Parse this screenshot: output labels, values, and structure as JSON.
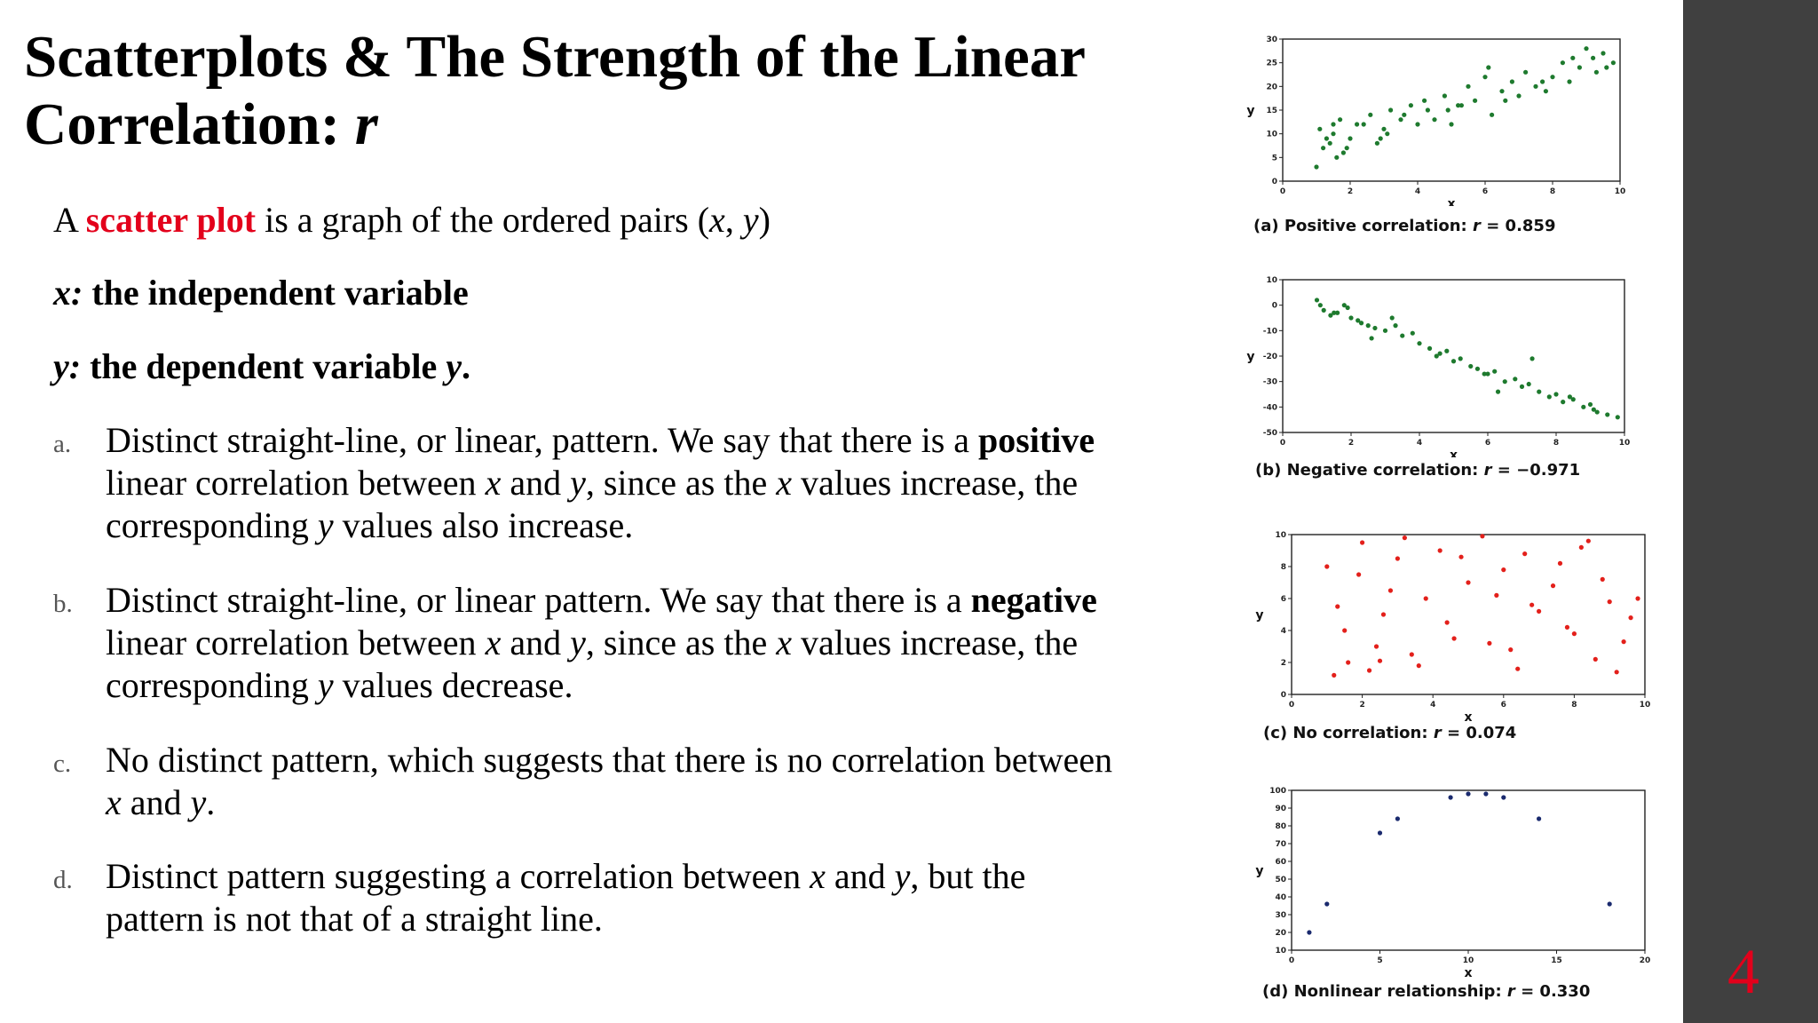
{
  "title": {
    "text": "Scatterplots & The Strength of the Linear Correlation: ",
    "var": "r"
  },
  "intro": {
    "line1": {
      "a": "A ",
      "term": "scatter plot",
      "rest": " is a graph of the ordered pairs (",
      "x": "x",
      "comma": ", ",
      "y": "y",
      "close": ")"
    },
    "line2": {
      "var": "x:",
      "rest": " the independent variable"
    },
    "line3": {
      "var": "y:",
      "rest": " the dependent variable ",
      "y": "y",
      "dot": "."
    }
  },
  "items": [
    {
      "marker": "a.",
      "p1": "Distinct straight-line, or linear, pattern. We say that there is a ",
      "key": "positive",
      "p2": " linear correlation between ",
      "x": "x",
      "and": " and ",
      "y": "y",
      "p3": ", since as the ",
      "x2": "x",
      "p4": " values increase, the corresponding ",
      "y2": "y",
      "p5": " values also increase."
    },
    {
      "marker": "b.",
      "p1": "Distinct straight-line, or linear pattern. We say that there is a ",
      "key": "negative",
      "p2": " linear correlation between ",
      "x": "x",
      "and": " and ",
      "y": "y",
      "p3": ", since as the ",
      "x2": "x",
      "p4": " values increase, the corresponding ",
      "y2": "y",
      "p5": " values decrease."
    },
    {
      "marker": "c.",
      "p1": "No distinct pattern, which suggests that there is no correlation between ",
      "x": "x",
      "and": " and ",
      "y": "y",
      "p2": "."
    },
    {
      "marker": "d.",
      "p1": "Distinct pattern suggesting a correlation between ",
      "x": "x",
      "and": " and ",
      "y": "y",
      "p2": ", but the pattern is not that of a straight line."
    }
  ],
  "page_number": "4",
  "chart_data": [
    {
      "type": "scatter",
      "color": "#1e7a2e",
      "caption": {
        "pre": "(a) Positive correlation: ",
        "r": "r",
        "eq": " = ",
        "val": "0.859"
      },
      "xlabel": "x",
      "ylabel": "y",
      "xlim": [
        0,
        10
      ],
      "ylim": [
        0,
        30
      ],
      "xticks": [
        "0",
        "2",
        "4",
        "6",
        "8",
        "10"
      ],
      "yticks": [
        "0",
        "5",
        "10",
        "15",
        "20",
        "25",
        "30"
      ],
      "x": [
        1.0,
        1.2,
        1.4,
        1.5,
        1.6,
        1.8,
        2.0,
        2.2,
        1.1,
        1.3,
        1.7,
        1.9,
        2.4,
        2.6,
        2.8,
        3.0,
        3.2,
        3.5,
        3.8,
        4.0,
        4.2,
        3.6,
        2.9,
        4.5,
        4.8,
        5.0,
        5.2,
        5.5,
        4.3,
        5.7,
        6.0,
        6.2,
        6.5,
        6.8,
        7.0,
        5.3,
        6.1,
        7.2,
        7.5,
        7.8,
        8.0,
        8.3,
        8.5,
        8.8,
        9.0,
        9.2,
        9.5,
        9.8,
        6.6,
        7.7,
        8.6,
        9.3,
        9.6,
        1.5,
        3.1,
        4.9
      ],
      "y": [
        3,
        7,
        8,
        10,
        5,
        6,
        9,
        12,
        11,
        9,
        13,
        7,
        12,
        14,
        8,
        11,
        15,
        13,
        16,
        12,
        17,
        14,
        9,
        13,
        18,
        12,
        16,
        20,
        15,
        17,
        22,
        14,
        19,
        21,
        18,
        16,
        24,
        23,
        20,
        19,
        22,
        25,
        21,
        24,
        28,
        26,
        27,
        25,
        17,
        21,
        26,
        23,
        24,
        12,
        10,
        15
      ]
    },
    {
      "type": "scatter",
      "color": "#1e7a2e",
      "caption": {
        "pre": "(b) Negative correlation: ",
        "r": "r",
        "eq": " = ",
        "val": "−0.971"
      },
      "xlabel": "x",
      "ylabel": "y",
      "xlim": [
        0,
        10
      ],
      "ylim": [
        -50,
        10
      ],
      "xticks": [
        "0",
        "2",
        "4",
        "6",
        "8",
        "10"
      ],
      "yticks": [
        "-50",
        "-40",
        "-30",
        "-20",
        "-10",
        "0",
        "10"
      ],
      "x": [
        1.0,
        1.2,
        1.4,
        1.6,
        1.8,
        2.0,
        2.2,
        2.5,
        1.1,
        1.5,
        1.9,
        2.3,
        2.7,
        3.0,
        3.3,
        3.5,
        3.8,
        2.6,
        4.0,
        4.3,
        4.5,
        4.8,
        5.0,
        5.2,
        5.5,
        4.6,
        5.7,
        6.0,
        6.2,
        6.5,
        6.8,
        7.0,
        6.3,
        7.2,
        7.5,
        7.8,
        8.0,
        8.2,
        8.5,
        8.8,
        9.0,
        9.2,
        9.5,
        9.8,
        7.3,
        8.4,
        9.1,
        3.2,
        5.9
      ],
      "y": [
        2,
        -2,
        -4,
        -3,
        0,
        -5,
        -6,
        -8,
        0,
        -3,
        -1,
        -7,
        -9,
        -10,
        -8,
        -12,
        -11,
        -13,
        -15,
        -17,
        -20,
        -18,
        -22,
        -21,
        -24,
        -19,
        -25,
        -27,
        -26,
        -30,
        -29,
        -32,
        -34,
        -31,
        -34,
        -36,
        -35,
        -38,
        -37,
        -40,
        -39,
        -42,
        -43,
        -44,
        -21,
        -36,
        -41,
        -5,
        -27
      ]
    },
    {
      "type": "scatter",
      "color": "#e3201b",
      "caption": {
        "pre": "(c) No correlation: ",
        "r": "r",
        "eq": " = ",
        "val": "0.074"
      },
      "xlabel": "x",
      "ylabel": "y",
      "xlim": [
        0,
        10
      ],
      "ylim": [
        0,
        10
      ],
      "xticks": [
        "0",
        "2",
        "4",
        "6",
        "8",
        "10"
      ],
      "yticks": [
        "0",
        "2",
        "4",
        "6",
        "8",
        "10"
      ],
      "x": [
        1.0,
        1.3,
        1.6,
        2.0,
        2.4,
        2.8,
        3.2,
        1.5,
        1.9,
        2.2,
        2.6,
        3.0,
        3.4,
        3.8,
        4.2,
        4.6,
        5.0,
        4.4,
        3.6,
        5.4,
        5.8,
        6.2,
        6.6,
        7.0,
        5.6,
        6.0,
        6.4,
        7.4,
        7.8,
        8.2,
        8.6,
        9.0,
        7.6,
        8.0,
        8.8,
        9.2,
        9.6,
        9.8,
        1.2,
        2.5,
        4.8,
        6.8,
        8.4,
        9.4
      ],
      "y": [
        8.0,
        5.5,
        2.0,
        9.5,
        3.0,
        6.5,
        9.8,
        4.0,
        7.5,
        1.5,
        5.0,
        8.5,
        2.5,
        6.0,
        9.0,
        3.5,
        7.0,
        4.5,
        1.8,
        9.9,
        6.2,
        2.8,
        8.8,
        5.2,
        3.2,
        7.8,
        1.6,
        6.8,
        4.2,
        9.2,
        2.2,
        5.8,
        8.2,
        3.8,
        7.2,
        1.4,
        4.8,
        6.0,
        1.2,
        2.1,
        8.6,
        5.6,
        9.6,
        3.3
      ]
    },
    {
      "type": "scatter",
      "color": "#1a2a6e",
      "caption": {
        "pre": "(d) Nonlinear relationship: ",
        "r": "r",
        "eq": " = ",
        "val": "0.330"
      },
      "xlabel": "x",
      "ylabel": "y",
      "xlim": [
        0,
        20
      ],
      "ylim": [
        10,
        100
      ],
      "xticks": [
        "0",
        "5",
        "10",
        "15",
        "20"
      ],
      "yticks": [
        "10",
        "20",
        "30",
        "40",
        "50",
        "60",
        "70",
        "80",
        "90",
        "100"
      ],
      "x": [
        1,
        2,
        5,
        6,
        9,
        10,
        11,
        12,
        14,
        18
      ],
      "y": [
        20,
        36,
        76,
        84,
        96,
        98,
        98,
        96,
        84,
        36
      ]
    }
  ]
}
